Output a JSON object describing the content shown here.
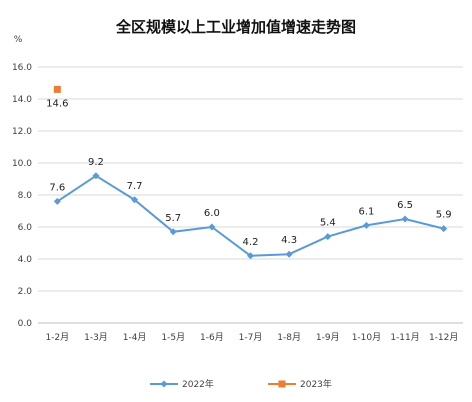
{
  "chart_data": {
    "type": "line",
    "title": "全区规模以上工业增加值增速走势图",
    "unit": "%",
    "ylim": [
      0,
      16
    ],
    "ytick_labels": [
      "0.0",
      "2.0",
      "4.0",
      "6.0",
      "8.0",
      "10.0",
      "12.0",
      "14.0",
      "16.0"
    ],
    "grid": true,
    "legend_position": "bottom",
    "categories": [
      "1-2月",
      "1-3月",
      "1-4月",
      "1-5月",
      "1-6月",
      "1-7月",
      "1-8月",
      "1-9月",
      "1-10月",
      "1-11月",
      "1-12月"
    ],
    "series": [
      {
        "name": "2022年",
        "color": "#5b9bd5",
        "marker": "diamond",
        "values": [
          7.6,
          9.2,
          7.7,
          5.7,
          6.0,
          4.2,
          4.3,
          5.4,
          6.1,
          6.5,
          5.9
        ],
        "labels": [
          "7.6",
          "9.2",
          "7.7",
          "5.7",
          "6.0",
          "4.2",
          "4.3",
          "5.4",
          "6.1",
          "6.5",
          "5.9"
        ]
      },
      {
        "name": "2023年",
        "color": "#ed7d31",
        "marker": "square",
        "values": [
          14.6,
          null,
          null,
          null,
          null,
          null,
          null,
          null,
          null,
          null,
          null
        ],
        "labels": [
          "14.6",
          "",
          "",
          "",
          "",
          "",
          "",
          "",
          "",
          "",
          ""
        ]
      }
    ]
  }
}
